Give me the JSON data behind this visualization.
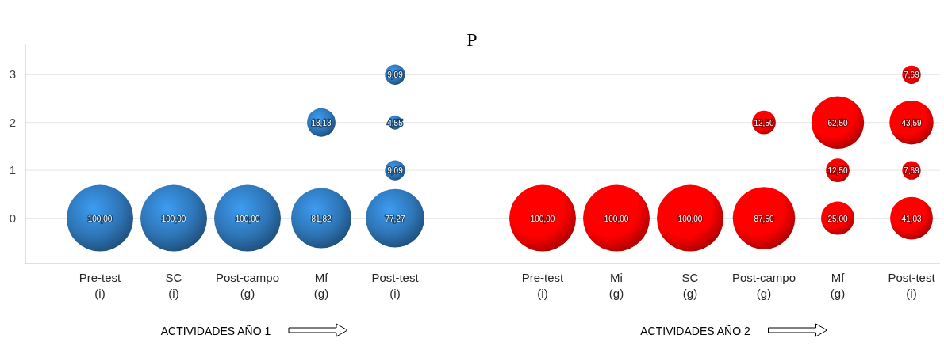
{
  "chart_data": {
    "type": "bubble",
    "title": "P",
    "categories": [
      "Pre-test\n(i)",
      "SC\n(i)",
      "Post-campo\n(g)",
      "Mf\n(g)",
      "Post-test\n(i)",
      null,
      "Pre-test\n(i)",
      "Mi\n(g)",
      "SC\n(g)",
      "Post-campo\n(g)",
      "Mf\n(g)",
      "Post-test\n(i)"
    ],
    "series": [
      {
        "color": "#2e75b6",
        "values": [
          0,
          0,
          0,
          0,
          0,
          null,
          null,
          null,
          null,
          null,
          null,
          null
        ],
        "sizes": [
          100,
          100,
          100,
          81.82,
          77.27,
          null,
          null,
          null,
          null,
          null,
          null,
          null
        ],
        "value_labels": [
          "100,00",
          "100,00",
          "100,00",
          "81,82",
          "77,27",
          null,
          null,
          null,
          null,
          null,
          null,
          null
        ]
      },
      {
        "color": "#2e75b6",
        "values": [
          null,
          null,
          null,
          null,
          1,
          null,
          null,
          null,
          null,
          null,
          null,
          null
        ],
        "sizes": [
          null,
          null,
          null,
          null,
          9.09,
          null,
          null,
          null,
          null,
          null,
          null,
          null
        ],
        "value_labels": [
          null,
          null,
          null,
          null,
          "9,09",
          null,
          null,
          null,
          null,
          null,
          null,
          null
        ]
      },
      {
        "color": "#2e75b6",
        "values": [
          null,
          null,
          null,
          2,
          2,
          null,
          null,
          null,
          null,
          null,
          null,
          null
        ],
        "sizes": [
          null,
          null,
          null,
          18.18,
          4.55,
          null,
          null,
          null,
          null,
          null,
          null,
          null
        ],
        "value_labels": [
          null,
          null,
          null,
          "18,18",
          "4,55",
          null,
          null,
          null,
          null,
          null,
          null,
          null
        ]
      },
      {
        "color": "#2e75b6",
        "values": [
          null,
          null,
          null,
          null,
          3,
          null,
          null,
          null,
          null,
          null,
          null,
          null
        ],
        "sizes": [
          null,
          null,
          null,
          null,
          9.09,
          null,
          null,
          null,
          null,
          null,
          null,
          null
        ],
        "value_labels": [
          null,
          null,
          null,
          null,
          "9,09",
          null,
          null,
          null,
          null,
          null,
          null,
          null
        ]
      },
      {
        "color": "#ff0000",
        "values": [
          null,
          null,
          null,
          null,
          null,
          null,
          0,
          0,
          0,
          0,
          0,
          0
        ],
        "sizes": [
          null,
          null,
          null,
          null,
          null,
          null,
          100,
          100,
          100,
          87.5,
          25,
          41.03
        ],
        "value_labels": [
          null,
          null,
          null,
          null,
          null,
          null,
          "100,00",
          "100,00",
          "100,00",
          "87,50",
          "25,00",
          "41,03"
        ]
      },
      {
        "color": "#ff0000",
        "values": [
          null,
          null,
          null,
          null,
          null,
          null,
          null,
          null,
          null,
          null,
          1,
          1
        ],
        "sizes": [
          null,
          null,
          null,
          null,
          null,
          null,
          null,
          null,
          null,
          null,
          12.5,
          7.69
        ],
        "value_labels": [
          null,
          null,
          null,
          null,
          null,
          null,
          null,
          null,
          null,
          null,
          "12,50",
          "7,69"
        ]
      },
      {
        "color": "#ff0000",
        "values": [
          null,
          null,
          null,
          null,
          null,
          null,
          null,
          null,
          null,
          2,
          2,
          2
        ],
        "sizes": [
          null,
          null,
          null,
          null,
          null,
          null,
          null,
          null,
          null,
          12.5,
          62.5,
          43.59
        ],
        "value_labels": [
          null,
          null,
          null,
          null,
          null,
          null,
          null,
          null,
          null,
          "12,50",
          "62,50",
          "43,59"
        ]
      },
      {
        "color": "#ff0000",
        "values": [
          null,
          null,
          null,
          null,
          null,
          null,
          null,
          null,
          null,
          null,
          null,
          3
        ],
        "sizes": [
          null,
          null,
          null,
          null,
          null,
          null,
          null,
          null,
          null,
          null,
          null,
          7.69
        ],
        "value_labels": [
          null,
          null,
          null,
          null,
          null,
          null,
          null,
          null,
          null,
          null,
          null,
          "7,69"
        ]
      }
    ],
    "ylim": [
      -0.95,
      3.65
    ],
    "yticks": [
      0,
      1,
      2,
      3
    ],
    "grid": "y",
    "annotations": [
      "ACTIVIDADES AÑO 1",
      "ACTIVIDADES AÑO 2"
    ]
  }
}
